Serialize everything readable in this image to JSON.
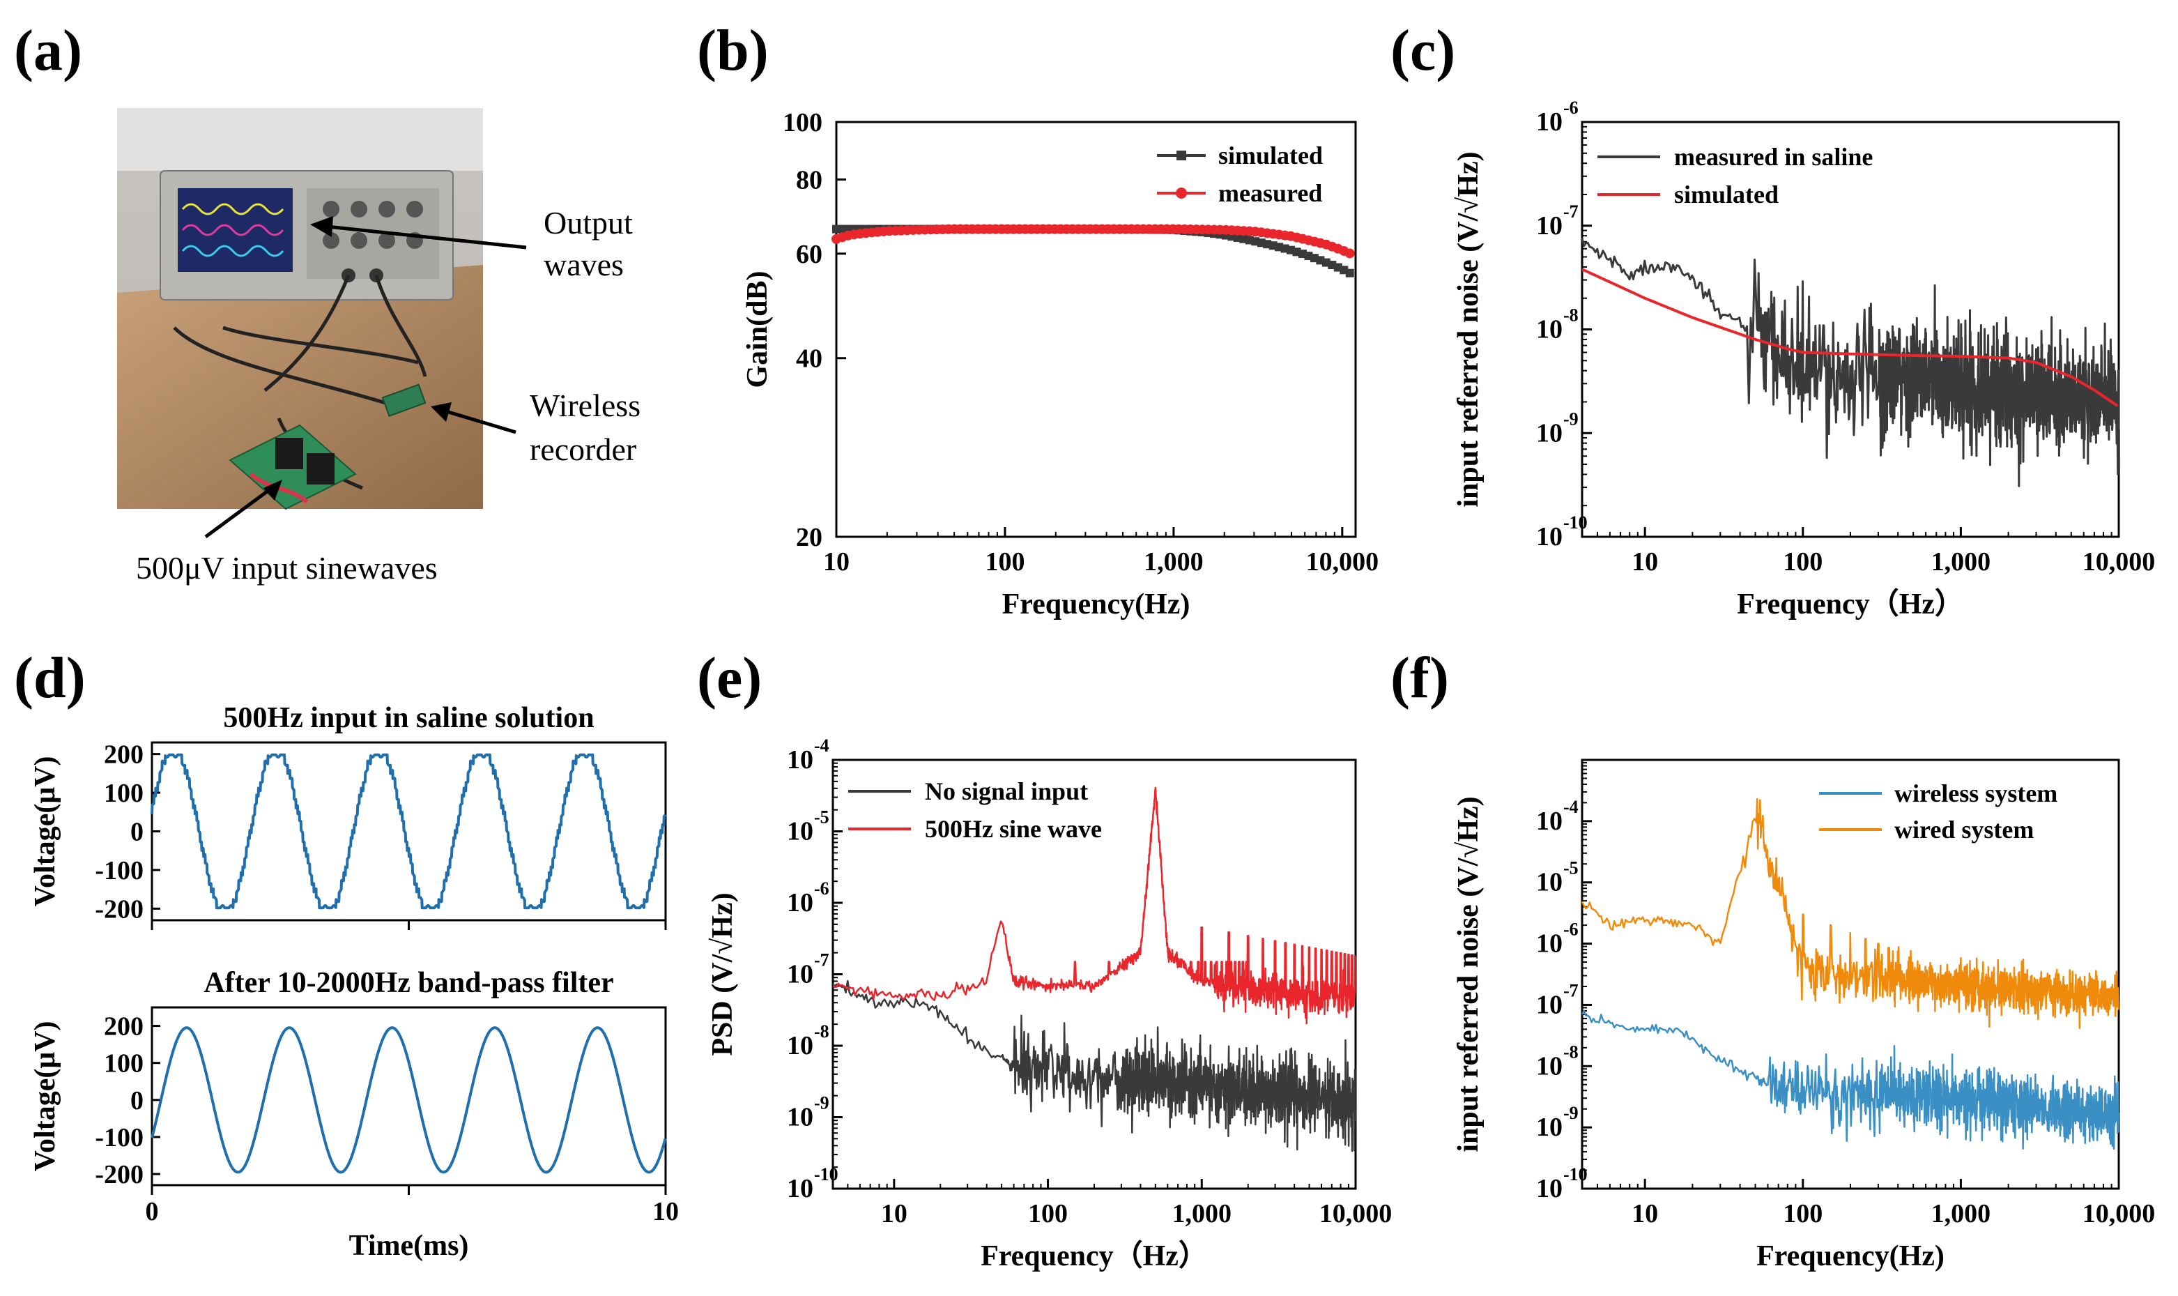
{
  "panel_labels": [
    "(a)",
    "(b)",
    "(c)",
    "(d)",
    "(e)",
    "(f)"
  ],
  "photo": {
    "annotations": {
      "output_line1": "Output",
      "output_line2": "waves",
      "wireless_line1": "Wireless",
      "wireless_line2": "recorder",
      "input": "500μV input sinewaves"
    }
  },
  "colors": {
    "black_series": "#3a3a3a",
    "red_series": "#e8262b",
    "blue_series": "#3a8fc4",
    "orange_series": "#ef8a0a",
    "d_trace": "#1f6fae"
  },
  "chart_data": [
    {
      "id": "b",
      "type": "line",
      "xlabel": "Frequency(Hz)",
      "ylabel": "Gain(dB)",
      "x_scale": "log",
      "y_scale": "log",
      "xlim": [
        10,
        12000
      ],
      "ylim": [
        20,
        100
      ],
      "xticks": [
        "10",
        "100",
        "1,000",
        "10,000"
      ],
      "yticks": [
        "20",
        "40",
        "60",
        "80",
        "100"
      ],
      "legend_position": "top-right",
      "series": [
        {
          "name": "simulated",
          "color": "#3a3a3a",
          "marker": "square",
          "x": [
            10,
            20,
            50,
            100,
            200,
            500,
            1000,
            1500,
            2000,
            3000,
            4000,
            5000,
            6000,
            8000,
            10000,
            12000
          ],
          "y": [
            66,
            66,
            66,
            66,
            66,
            66,
            65.8,
            65.2,
            64.5,
            63,
            61.8,
            60.8,
            59.8,
            58,
            56.5,
            55
          ]
        },
        {
          "name": "measured",
          "color": "#e8262b",
          "marker": "circle",
          "x": [
            10,
            12,
            15,
            20,
            30,
            50,
            100,
            200,
            500,
            1000,
            2000,
            3000,
            5000,
            8000,
            10000,
            12000
          ],
          "y": [
            63.5,
            64.5,
            65,
            65.5,
            65.8,
            66,
            66,
            66,
            66,
            66,
            65.8,
            65.4,
            64.2,
            62.2,
            60.8,
            59.5
          ]
        }
      ]
    },
    {
      "id": "c",
      "type": "line",
      "xlabel": "Frequency（Hz）",
      "ylabel": "input referred noise (V/√Hz)",
      "x_scale": "log",
      "y_scale": "log",
      "xlim": [
        4,
        10000
      ],
      "ylim": [
        "1e-10",
        "1e-6"
      ],
      "xticks": [
        "10",
        "100",
        "1,000",
        "10,000"
      ],
      "yticks": [
        "10",
        "10",
        "10",
        "10",
        "10"
      ],
      "ytick_exponents": [
        "-10",
        "-9",
        "-8",
        "-7",
        "-6"
      ],
      "legend_position": "top-left",
      "series": [
        {
          "name": "measured in saline",
          "color": "#3a3a3a",
          "x": [
            4,
            8,
            16,
            30,
            40,
            60,
            100,
            1000,
            10000
          ],
          "y": [
            7e-08,
            3.5e-08,
            4.5e-08,
            1.4e-08,
            1.2e-08,
            6e-09,
            4e-09,
            3e-09,
            2e-09
          ],
          "noise": "high-frequency fluctuation"
        },
        {
          "name": "simulated",
          "color": "#e8262b",
          "x": [
            4,
            10,
            20,
            50,
            80,
            100,
            200,
            500,
            1000,
            2000,
            3000,
            5000,
            7000,
            10000
          ],
          "y": [
            3.8e-08,
            2e-08,
            1.3e-08,
            8e-09,
            6.5e-09,
            6e-09,
            5.8e-09,
            5.6e-09,
            5.5e-09,
            5.3e-09,
            4.8e-09,
            3.5e-09,
            2.6e-09,
            1.8e-09
          ]
        }
      ]
    },
    {
      "id": "d1",
      "type": "line",
      "title": "500Hz input in saline solution",
      "ylabel": "Voltage(μV)",
      "ylim": [
        -230,
        230
      ],
      "yticks": [
        "200",
        "100",
        "0",
        "-100",
        "-200"
      ],
      "series": [
        {
          "name": "",
          "frequency_hz": 500,
          "amplitude_uv": 200,
          "waveform": "stepped clipped sine",
          "x_range_ms": [
            0,
            10
          ]
        }
      ]
    },
    {
      "id": "d2",
      "type": "line",
      "title": "After 10-2000Hz band-pass filter",
      "xlabel": "Time(ms)",
      "ylabel": "Voltage(μV)",
      "xlim": [
        0,
        10
      ],
      "ylim": [
        -230,
        250
      ],
      "xticks": [
        "0",
        "10"
      ],
      "yticks": [
        "200",
        "100",
        "0",
        "-100",
        "-200"
      ],
      "series": [
        {
          "name": "",
          "frequency_hz": 500,
          "amplitude_uv": 195,
          "waveform": "smooth sine",
          "x_range_ms": [
            0,
            10
          ]
        }
      ]
    },
    {
      "id": "e",
      "type": "line",
      "xlabel": "Frequency（Hz）",
      "ylabel": "PSD (V/√Hz)",
      "x_scale": "log",
      "y_scale": "log",
      "xlim": [
        4,
        10000
      ],
      "ylim": [
        "1e-10",
        "1e-4"
      ],
      "xticks": [
        "10",
        "100",
        "1,000",
        "10,000"
      ],
      "yticks": [
        "10",
        "10",
        "10",
        "10",
        "10",
        "10",
        "10"
      ],
      "ytick_exponents": [
        "-10",
        "-9",
        "-8",
        "-7",
        "-6",
        "-5",
        "-4"
      ],
      "legend_position": "top-left",
      "series": [
        {
          "name": "No signal input",
          "color": "#3a3a3a",
          "x": [
            4,
            8,
            16,
            30,
            60,
            100,
            1000,
            10000
          ],
          "y": [
            7e-08,
            4e-08,
            4e-08,
            1.3e-08,
            5e-09,
            4e-09,
            3e-09,
            1.5e-09
          ]
        },
        {
          "name": "500Hz sine wave",
          "color": "#e8262b",
          "x": [
            4,
            10,
            20,
            40,
            50,
            60,
            100,
            200,
            400,
            500,
            600,
            1000,
            2000,
            5000,
            10000
          ],
          "y": [
            7e-08,
            5e-08,
            5e-08,
            8e-08,
            6e-07,
            8e-08,
            7e-08,
            7e-08,
            2e-07,
            4e-05,
            2e-07,
            8e-08,
            6e-08,
            5e-08,
            5e-08
          ]
        }
      ]
    },
    {
      "id": "f",
      "type": "line",
      "xlabel": "Frequency(Hz)",
      "ylabel": "input referred noise (V/√Hz)",
      "x_scale": "log",
      "y_scale": "log",
      "xlim": [
        4,
        10000
      ],
      "ylim": [
        "1e-10",
        "1e-3"
      ],
      "xticks": [
        "10",
        "100",
        "1,000",
        "10,000"
      ],
      "yticks": [
        "10",
        "10",
        "10",
        "10",
        "10",
        "10",
        "10"
      ],
      "ytick_exponents": [
        "-10",
        "-9",
        "-8",
        "-7",
        "-6",
        "-5",
        "-4"
      ],
      "legend_position": "top-right",
      "series": [
        {
          "name": "wireless system",
          "color": "#3a8fc4",
          "x": [
            4,
            8,
            16,
            30,
            60,
            100,
            1000,
            10000
          ],
          "y": [
            7e-08,
            4e-08,
            4e-08,
            1.3e-08,
            5e-09,
            4e-09,
            3e-09,
            1.5e-09
          ]
        },
        {
          "name": "wired system",
          "color": "#ef8a0a",
          "x": [
            4,
            6,
            10,
            20,
            30,
            50,
            100,
            1000,
            10000
          ],
          "y": [
            5e-06,
            2e-06,
            2.5e-06,
            2e-06,
            1e-06,
            0.00015,
            4e-07,
            2e-07,
            1.5e-07
          ]
        }
      ]
    }
  ]
}
